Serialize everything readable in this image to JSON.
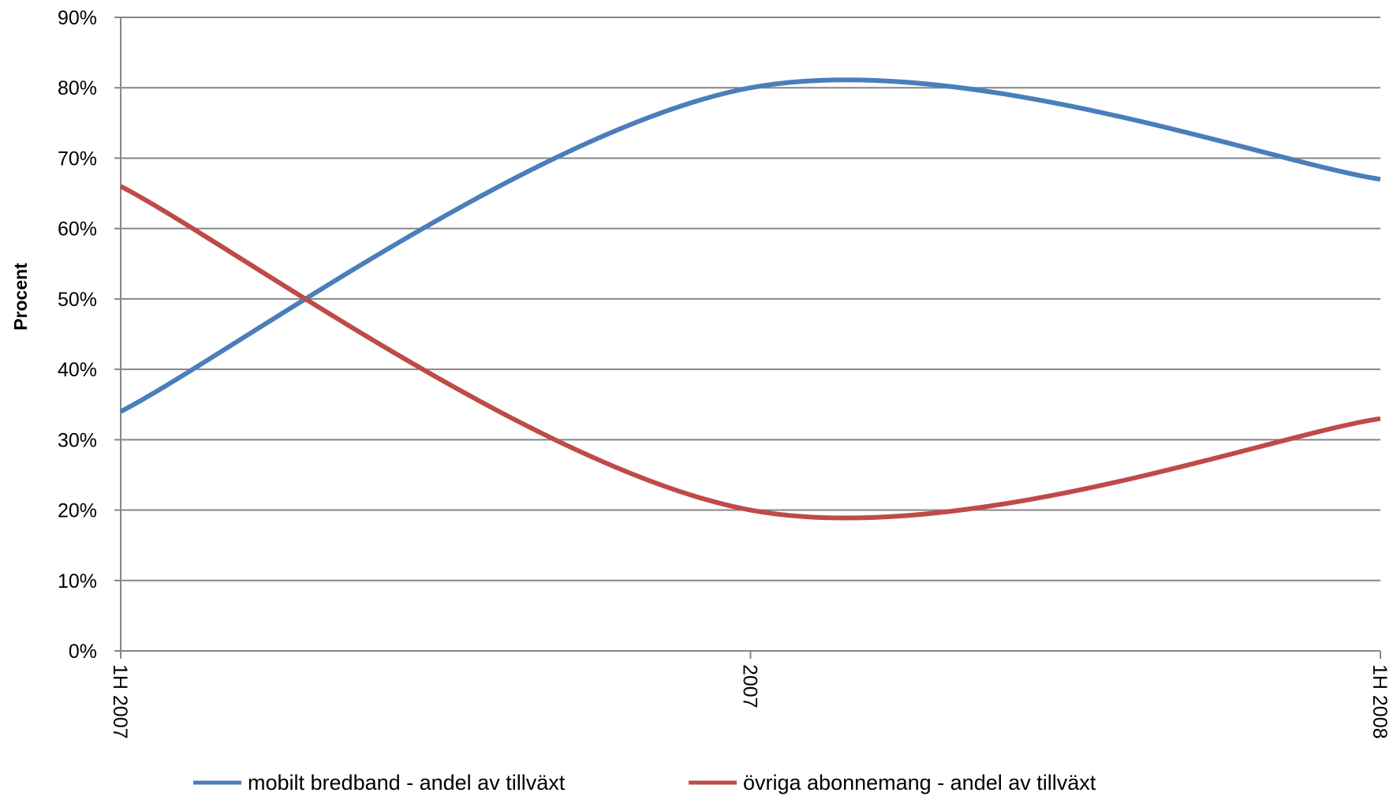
{
  "chart_data": {
    "type": "line",
    "x_categories": [
      "1H 2007",
      "2007",
      "1H 2008"
    ],
    "ylabel": "Procent",
    "ylim": [
      0,
      90
    ],
    "y_ticks": [
      0,
      10,
      20,
      30,
      40,
      50,
      60,
      70,
      80,
      90
    ],
    "y_tick_format": "%",
    "grid": true,
    "legend_position": "bottom",
    "smoothed": true,
    "series": [
      {
        "name": "mobilt bredband - andel av tillväxt",
        "color": "#4a7ebb",
        "values": [
          34,
          80,
          67
        ]
      },
      {
        "name": "övriga abonnemang - andel av tillväxt",
        "color": "#be4b48",
        "values": [
          66,
          20,
          33
        ]
      }
    ]
  },
  "colors": {
    "grid": "#868686",
    "axis": "#868686"
  }
}
